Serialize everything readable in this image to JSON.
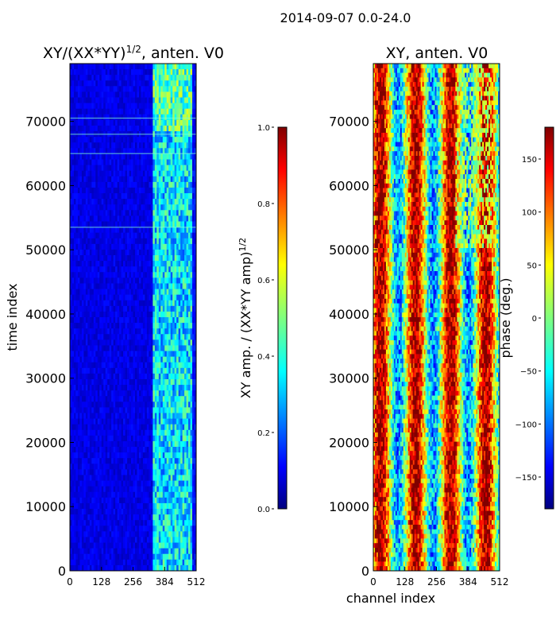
{
  "figure": {
    "suptitle": "2014-09-07 0.0-24.0"
  },
  "chart_data": [
    {
      "type": "heatmap",
      "title": "XY/(XX*YY)",
      "title_sup": "1/2",
      "title_suffix": ", anten. V0",
      "xlabel": "",
      "ylabel": "time index",
      "xlim": [
        0,
        512
      ],
      "ylim": [
        0,
        79000
      ],
      "xticks": [
        0,
        128,
        256,
        384,
        512
      ],
      "yticks": [
        0,
        10000,
        20000,
        30000,
        40000,
        50000,
        60000,
        70000
      ],
      "colormap": "jet",
      "colorbar": {
        "label": "XY amp. / (XX*YY amp)",
        "label_sup": "1/2",
        "range": [
          0.0,
          1.0
        ],
        "ticks": [
          0.0,
          0.2,
          0.4,
          0.6,
          0.8,
          1.0
        ]
      },
      "description_values": {
        "typical_amp_channels_0_300": 0.1,
        "typical_amp_channels_330_500": 0.35
      }
    },
    {
      "type": "heatmap",
      "title": "XY, anten. V0",
      "xlabel": "channel index",
      "ylabel": "",
      "xlim": [
        0,
        512
      ],
      "ylim": [
        0,
        79000
      ],
      "xticks": [
        0,
        128,
        256,
        384,
        512
      ],
      "yticks": [
        0,
        10000,
        20000,
        30000,
        40000,
        50000,
        60000,
        70000
      ],
      "colormap": "jet",
      "colorbar": {
        "label": "phase (deg.)",
        "range": [
          -180,
          180
        ],
        "ticks": [
          -150,
          -100,
          -50,
          0,
          50,
          100,
          150
        ]
      }
    }
  ],
  "colors": {
    "jet": [
      "#00007f",
      "#0000ff",
      "#007fff",
      "#00ffff",
      "#7fff7f",
      "#ffff00",
      "#ff7f00",
      "#ff0000",
      "#7f0000"
    ]
  }
}
